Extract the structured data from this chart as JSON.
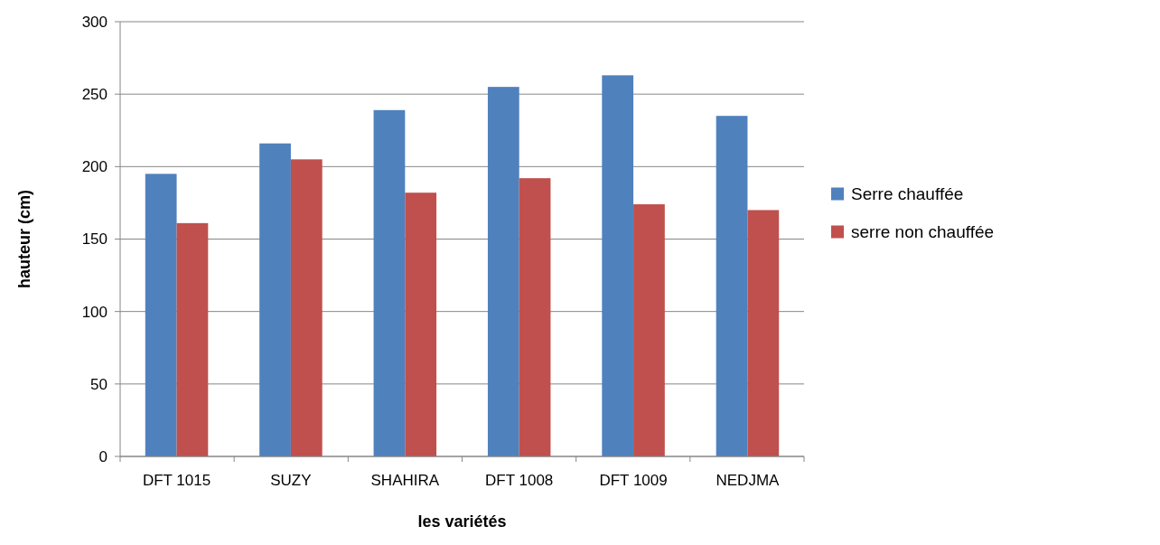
{
  "chart_data": {
    "type": "bar",
    "xlabel": "les variétés",
    "ylabel": "hauteur (cm)",
    "categories": [
      "DFT 1015",
      "SUZY",
      "SHAHIRA",
      "DFT 1008",
      "DFT 1009",
      "NEDJMA"
    ],
    "series": [
      {
        "name": "Serre chauffée",
        "color": "#4f81bd",
        "values": [
          195,
          216,
          239,
          255,
          263,
          235
        ]
      },
      {
        "name": "serre non chauffée",
        "color": "#c0504d",
        "values": [
          161,
          205,
          182,
          192,
          174,
          170
        ]
      }
    ],
    "ylim": [
      0,
      300
    ],
    "yticks": [
      0,
      50,
      100,
      150,
      200,
      250,
      300
    ],
    "grid": "y",
    "legend": "right"
  }
}
